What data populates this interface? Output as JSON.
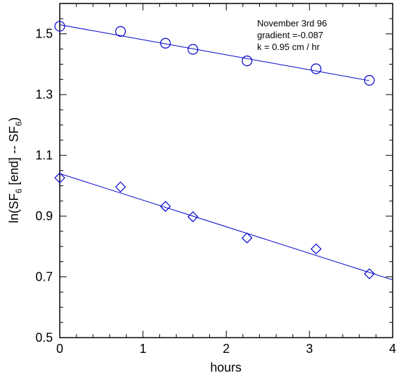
{
  "chart_data": {
    "type": "scatter",
    "title": "",
    "xlabel": "hours",
    "ylabel": {
      "prefix": "ln(SF",
      "sub1": "6",
      "middle": " [end] -- SF",
      "sub2": "6",
      "suffix": ")"
    },
    "xlim": [
      0,
      4
    ],
    "ylim": [
      0.5,
      1.6
    ],
    "xticks": [
      "0",
      "1",
      "2",
      "3",
      "4"
    ],
    "yticks": [
      "0.5",
      "0.7",
      "0.9",
      "1.1",
      "1.3",
      "1.5"
    ],
    "grid": false,
    "annotation": [
      "November 3rd 96",
      "gradient =-0.087",
      "k = 0.95 cm / hr"
    ],
    "colors": {
      "marker": "#0000cc",
      "fit_line": "#0000cc",
      "axis": "#000000"
    },
    "series": [
      {
        "marker": "circle",
        "x": [
          0.0,
          0.73,
          1.27,
          1.6,
          2.25,
          3.08,
          3.72
        ],
        "y": [
          1.525,
          1.508,
          1.469,
          1.449,
          1.411,
          1.385,
          1.347
        ],
        "fit": {
          "x": [
            0,
            3.72
          ],
          "y": [
            1.53,
            1.346
          ]
        }
      },
      {
        "marker": "diamond",
        "x": [
          0.0,
          0.73,
          1.27,
          1.6,
          2.25,
          3.08,
          3.72
        ],
        "y": [
          1.026,
          0.996,
          0.932,
          0.898,
          0.828,
          0.792,
          0.71
        ],
        "fit": {
          "x": [
            0,
            4.0
          ],
          "y": [
            1.04,
            0.69
          ]
        }
      }
    ]
  }
}
